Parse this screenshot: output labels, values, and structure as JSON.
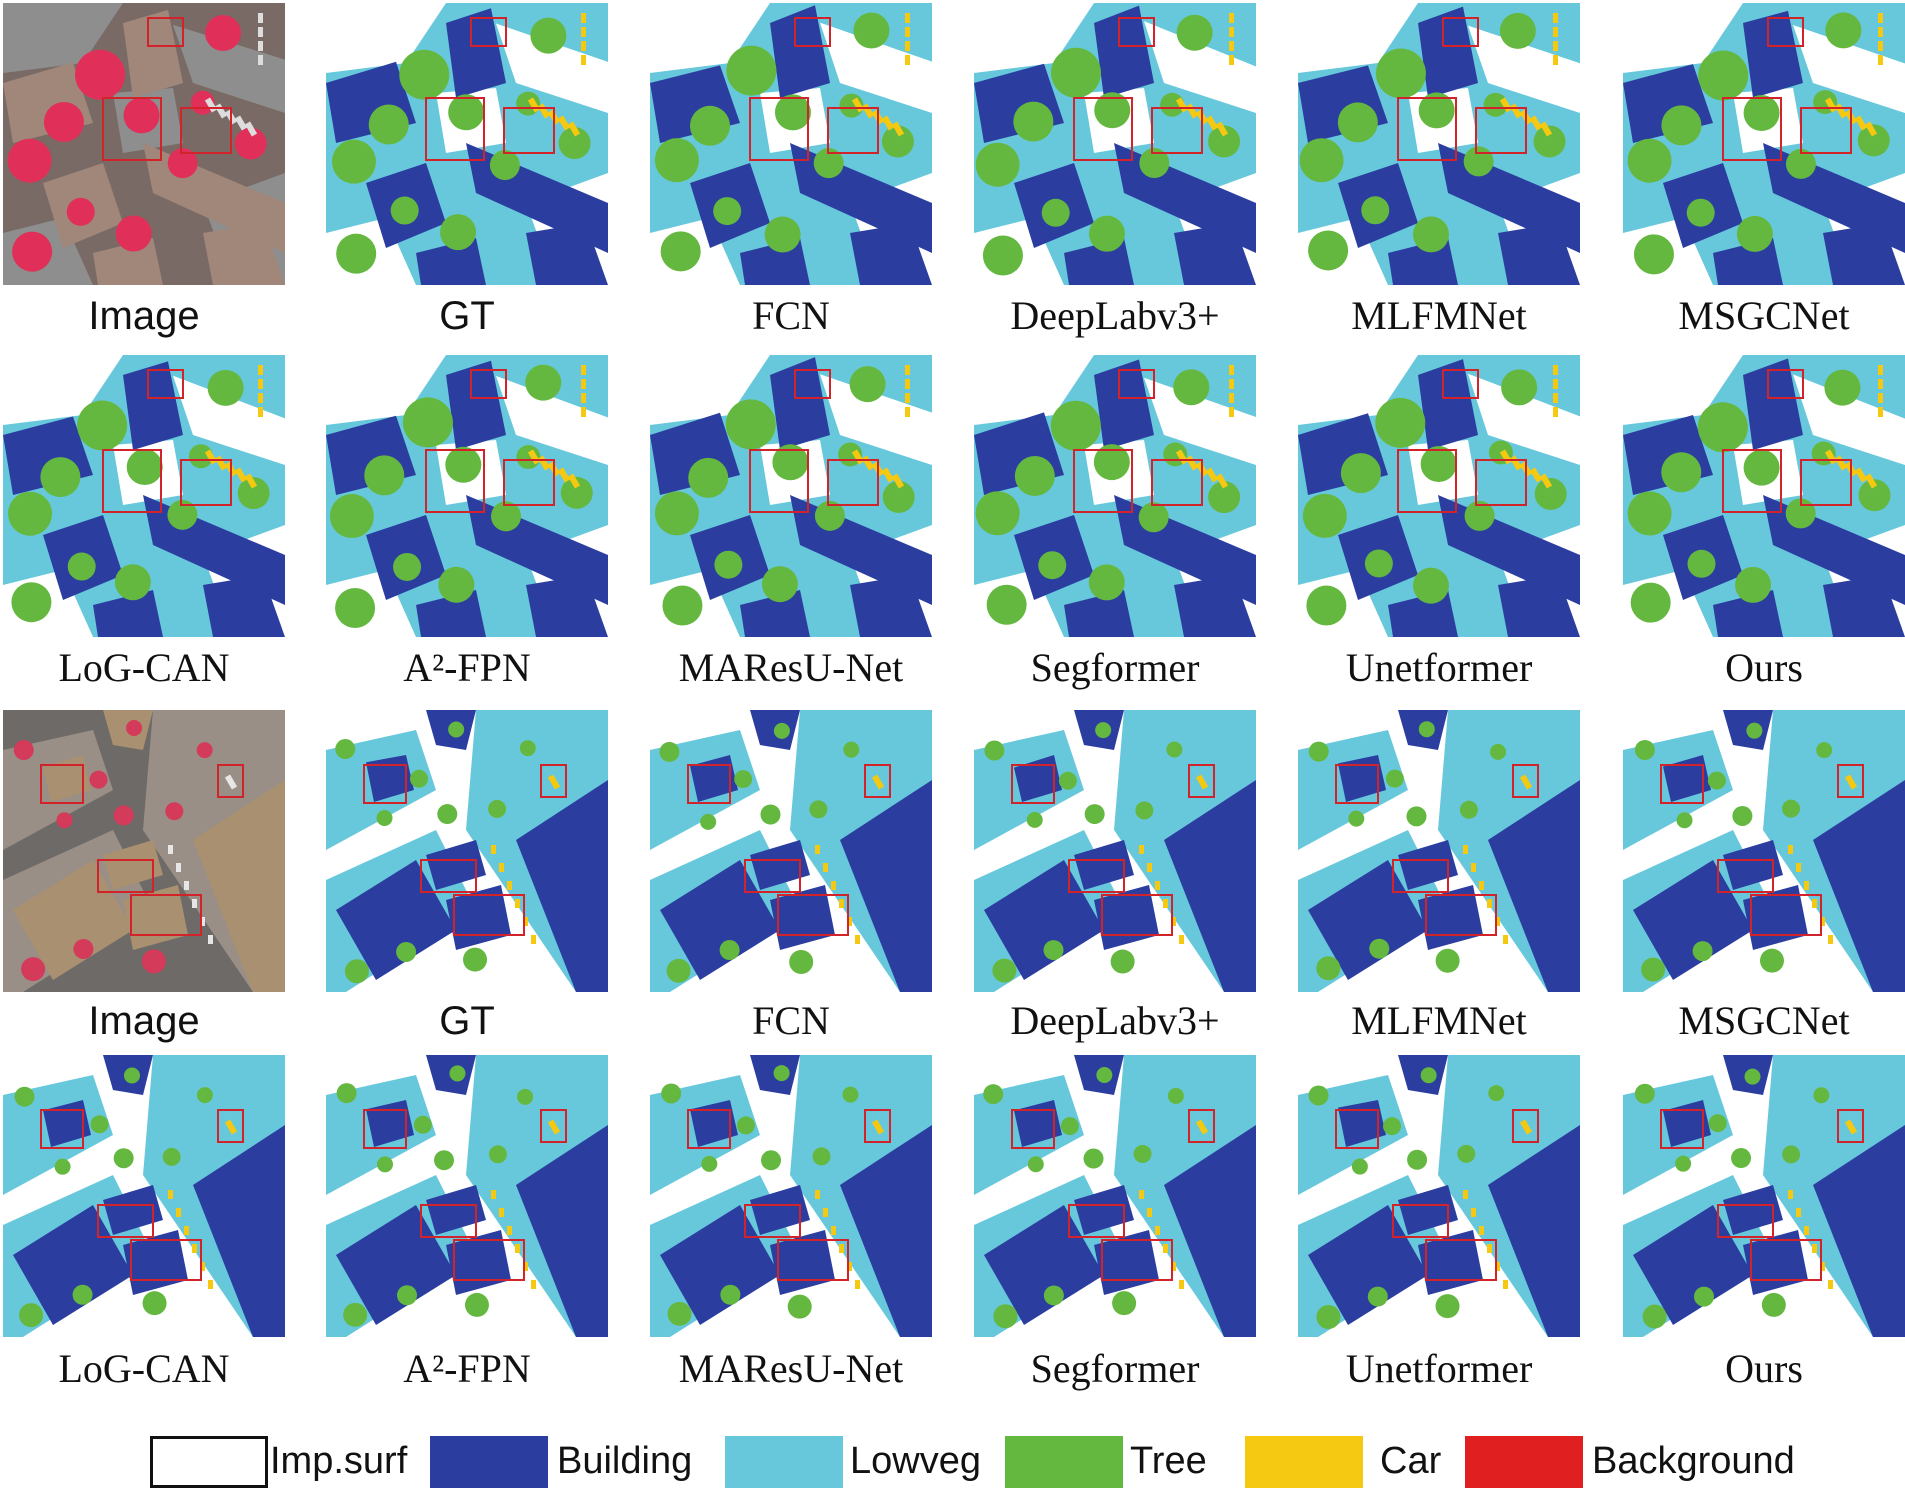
{
  "colors": {
    "imp_surf": "#ffffff",
    "building": "#2b3ea0",
    "lowveg": "#67c8dc",
    "tree": "#65b83f",
    "car": "#f5c811",
    "background": "#e02020",
    "highlight_box": "#d2232a"
  },
  "rows": [
    {
      "id": "set1-row1",
      "panels": [
        {
          "label": "Image",
          "kind": "image",
          "scene": "a",
          "font": "sans"
        },
        {
          "label": "GT",
          "kind": "seg",
          "scene": "a",
          "font": "sans"
        },
        {
          "label": "FCN",
          "kind": "seg",
          "scene": "a",
          "font": "serif"
        },
        {
          "label": "DeepLabv3+",
          "kind": "seg",
          "scene": "a",
          "font": "serif"
        },
        {
          "label": "MLFMNet",
          "kind": "seg",
          "scene": "a",
          "font": "serif"
        },
        {
          "label": "MSGCNet",
          "kind": "seg",
          "scene": "a",
          "font": "serif"
        }
      ]
    },
    {
      "id": "set1-row2",
      "panels": [
        {
          "label": "LoG-CAN",
          "kind": "seg",
          "scene": "a",
          "font": "serif"
        },
        {
          "label": "A²-FPN",
          "kind": "seg",
          "scene": "a",
          "font": "serif"
        },
        {
          "label": "MAResU-Net",
          "kind": "seg",
          "scene": "a",
          "font": "serif"
        },
        {
          "label": "Segformer",
          "kind": "seg",
          "scene": "a",
          "font": "serif"
        },
        {
          "label": "Unetformer",
          "kind": "seg",
          "scene": "a",
          "font": "serif"
        },
        {
          "label": "Ours",
          "kind": "seg",
          "scene": "a",
          "font": "serif"
        }
      ]
    },
    {
      "id": "set2-row1",
      "panels": [
        {
          "label": "Image",
          "kind": "image",
          "scene": "b",
          "font": "sans"
        },
        {
          "label": "GT",
          "kind": "seg",
          "scene": "b",
          "font": "sans"
        },
        {
          "label": "FCN",
          "kind": "seg",
          "scene": "b",
          "font": "serif"
        },
        {
          "label": "DeepLabv3+",
          "kind": "seg",
          "scene": "b",
          "font": "serif"
        },
        {
          "label": "MLFMNet",
          "kind": "seg",
          "scene": "b",
          "font": "serif"
        },
        {
          "label": "MSGCNet",
          "kind": "seg",
          "scene": "b",
          "font": "serif"
        }
      ]
    },
    {
      "id": "set2-row2",
      "panels": [
        {
          "label": "LoG-CAN",
          "kind": "seg",
          "scene": "b",
          "font": "serif"
        },
        {
          "label": "A²-FPN",
          "kind": "seg",
          "scene": "b",
          "font": "serif"
        },
        {
          "label": "MAResU-Net",
          "kind": "seg",
          "scene": "b",
          "font": "serif"
        },
        {
          "label": "Segformer",
          "kind": "seg",
          "scene": "b",
          "font": "serif"
        },
        {
          "label": "Unetformer",
          "kind": "seg",
          "scene": "b",
          "font": "serif"
        },
        {
          "label": "Ours",
          "kind": "seg",
          "scene": "b",
          "font": "serif"
        }
      ]
    }
  ],
  "legend": [
    {
      "label": "Imp.surf",
      "color_key": "imp_surf"
    },
    {
      "label": "Building",
      "color_key": "building"
    },
    {
      "label": "Lowveg",
      "color_key": "lowveg"
    },
    {
      "label": "Tree",
      "color_key": "tree"
    },
    {
      "label": "Car",
      "color_key": "car"
    },
    {
      "label": "Background",
      "color_key": "background"
    }
  ]
}
